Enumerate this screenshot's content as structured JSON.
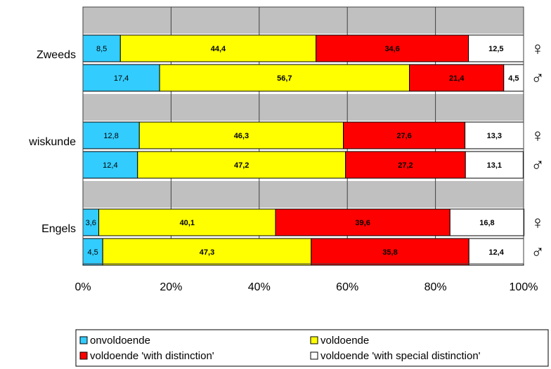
{
  "chart_data": {
    "type": "bar",
    "orientation": "horizontal",
    "stacked": true,
    "groups": [
      "Zweeds",
      "wiskunde",
      "Engels"
    ],
    "categories": [
      "♀",
      "♂",
      "♀",
      "♂",
      "♀",
      "♂"
    ],
    "series": [
      {
        "name": "onvoldoende",
        "color": "#33ccff",
        "values": [
          8.5,
          17.4,
          12.8,
          12.4,
          3.6,
          4.5
        ],
        "value_labels": [
          "8,5",
          "17,4",
          "12,8",
          "12,4",
          "3,6",
          "4,5"
        ]
      },
      {
        "name": "voldoende",
        "color": "#ffff00",
        "values": [
          44.4,
          56.7,
          46.3,
          47.2,
          40.1,
          47.3
        ],
        "value_labels": [
          "44,4",
          "56,7",
          "46,3",
          "47,2",
          "40,1",
          "47,3"
        ]
      },
      {
        "name": "voldoende 'with distinction'",
        "color": "#ff0000",
        "values": [
          34.6,
          21.4,
          27.6,
          27.2,
          39.6,
          35.8
        ],
        "value_labels": [
          "34,6",
          "21,4",
          "27,6",
          "27,2",
          "39,6",
          "35,8"
        ]
      },
      {
        "name": "voldoende 'with special distinction'",
        "color": "#ffffff",
        "values": [
          12.5,
          4.5,
          13.3,
          13.1,
          16.8,
          12.4
        ],
        "value_labels": [
          "12,5",
          "4,5",
          "13,3",
          "13,1",
          "16,8",
          "12,4"
        ]
      }
    ],
    "xlim": [
      0,
      100
    ],
    "xticks": [
      {
        "value": 0,
        "label": "0%"
      },
      {
        "value": 20,
        "label": "20%"
      },
      {
        "value": 40,
        "label": "40%"
      },
      {
        "value": 60,
        "label": "60%"
      },
      {
        "value": 80,
        "label": "80%"
      },
      {
        "value": 100,
        "label": "100%"
      }
    ],
    "grid": true
  }
}
